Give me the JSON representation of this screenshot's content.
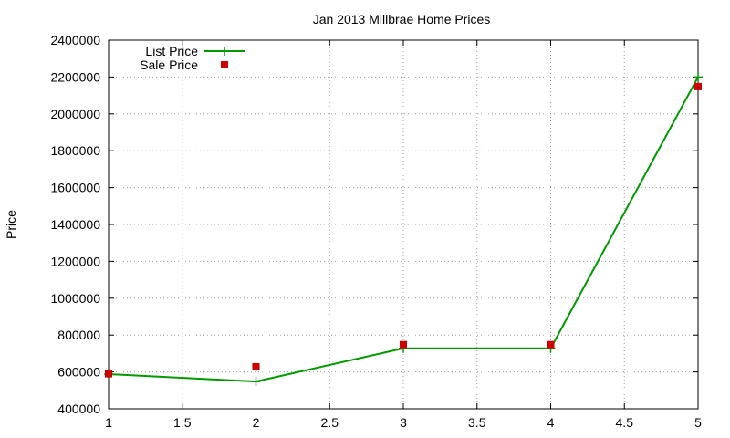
{
  "chart_data": {
    "type": "line",
    "title": "Jan 2013 Millbrae Home Prices",
    "xlabel": "",
    "ylabel": "Price",
    "xlim": [
      1,
      5
    ],
    "ylim": [
      400000,
      2400000
    ],
    "x_ticks": [
      "1",
      "1.5",
      "2",
      "2.5",
      "3",
      "3.5",
      "4",
      "4.5",
      "5"
    ],
    "y_ticks": [
      "400000",
      "600000",
      "800000",
      "1000000",
      "1200000",
      "1400000",
      "1600000",
      "1800000",
      "2000000",
      "2200000",
      "2400000"
    ],
    "grid": true,
    "legend_position": "top-left",
    "series": [
      {
        "name": "List Price",
        "style": "line+plus",
        "color": "#009900",
        "x": [
          1,
          2,
          3,
          4,
          5
        ],
        "y": [
          588000,
          548000,
          728000,
          728000,
          2200000
        ]
      },
      {
        "name": "Sale Price",
        "style": "square",
        "color": "#cc0000",
        "x": [
          1,
          2,
          3,
          4,
          5
        ],
        "y": [
          590000,
          628000,
          748000,
          748000,
          2148000
        ]
      }
    ]
  }
}
